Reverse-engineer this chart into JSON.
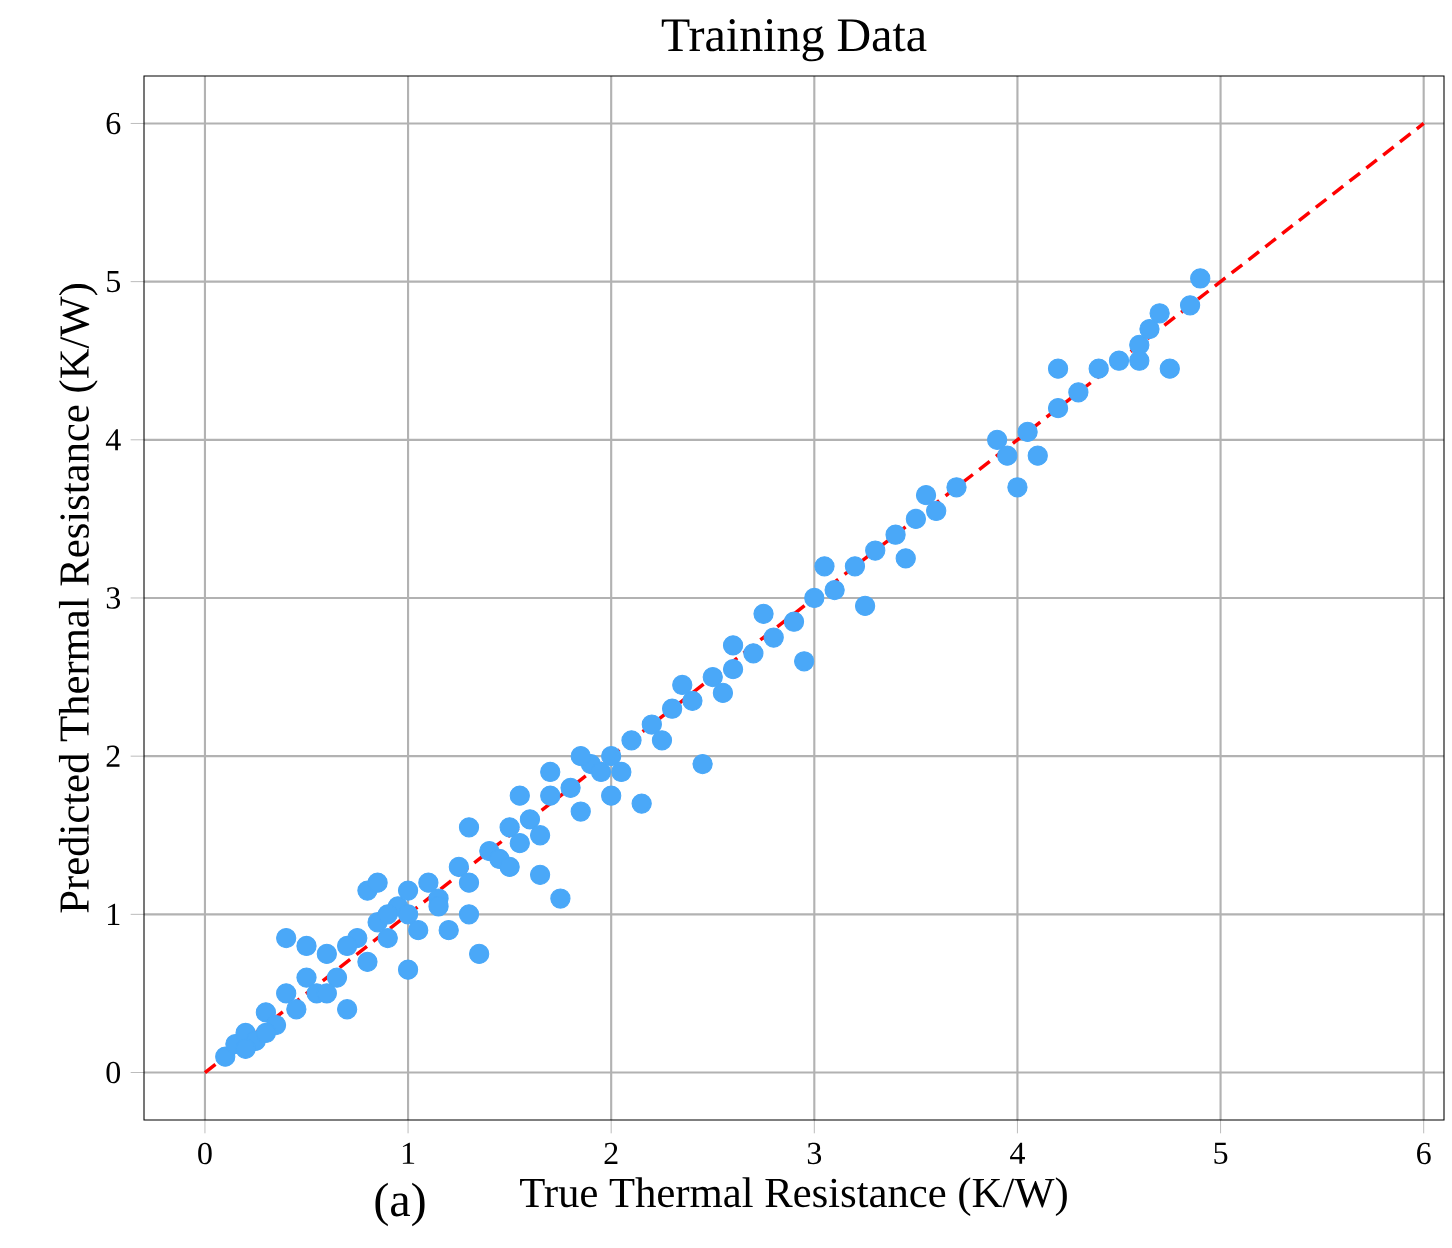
{
  "chart_data": {
    "type": "scatter",
    "title": "Training Data",
    "xlabel": "True Thermal Resistance (K/W)",
    "ylabel": "Predicted Thermal Resistance (K/W)",
    "annotations": [
      "(a)"
    ],
    "xlim": [
      -0.3,
      6.1
    ],
    "ylim": [
      -0.3,
      6.3
    ],
    "xticks": [
      0,
      1,
      2,
      3,
      4,
      5,
      6
    ],
    "yticks": [
      0,
      1,
      2,
      3,
      4,
      5,
      6
    ],
    "grid": true,
    "marker": "circle",
    "series": [
      {
        "color": "#4aa8f8",
        "x": [
          0.1,
          0.15,
          0.2,
          0.25,
          0.3,
          0.35,
          0.4,
          0.45,
          0.5,
          0.55,
          0.4,
          0.5,
          0.6,
          0.65,
          0.7,
          0.75,
          0.8,
          0.85,
          0.9,
          0.95,
          1.0,
          1.05,
          1.0,
          1.1,
          1.15,
          0.8,
          0.85,
          1.2,
          1.25,
          1.3,
          1.35,
          1.4,
          1.45,
          1.5,
          1.55,
          1.6,
          1.3,
          1.65,
          1.7,
          1.75,
          1.8,
          1.85,
          1.9,
          1.95,
          2.0,
          2.05,
          1.7,
          1.85,
          2.1,
          2.2,
          2.15,
          2.3,
          2.4,
          2.5,
          2.6,
          2.45,
          2.0,
          1.65,
          2.7,
          2.8,
          2.9,
          2.75,
          3.0,
          3.1,
          3.05,
          2.95,
          3.2,
          3.3,
          3.4,
          3.5,
          3.6,
          3.25,
          3.45,
          3.7,
          3.9,
          3.95,
          4.0,
          4.05,
          4.1,
          4.2,
          4.3,
          4.2,
          4.4,
          4.5,
          4.6,
          4.65,
          4.75,
          4.7,
          4.85,
          4.9,
          4.6,
          3.55,
          2.25,
          2.35,
          2.55,
          1.55,
          1.15,
          0.3,
          0.2,
          0.6,
          0.7,
          0.9,
          1.0,
          1.3,
          1.5,
          2.6
        ],
        "values": [
          0.1,
          0.18,
          0.25,
          0.2,
          0.38,
          0.3,
          0.5,
          0.4,
          0.6,
          0.5,
          0.85,
          0.8,
          0.75,
          0.6,
          0.4,
          0.85,
          0.7,
          0.95,
          0.85,
          1.05,
          1.0,
          0.9,
          0.65,
          1.2,
          1.1,
          1.15,
          1.2,
          0.9,
          1.3,
          1.2,
          0.75,
          1.4,
          1.35,
          1.55,
          1.45,
          1.6,
          1.55,
          1.5,
          1.75,
          1.1,
          1.8,
          1.65,
          1.95,
          1.9,
          2.0,
          1.9,
          1.9,
          2.0,
          2.1,
          2.2,
          1.7,
          2.3,
          2.35,
          2.5,
          2.55,
          1.95,
          1.75,
          1.25,
          2.65,
          2.75,
          2.85,
          2.9,
          3.0,
          3.05,
          3.2,
          2.6,
          3.2,
          3.3,
          3.4,
          3.5,
          3.55,
          2.95,
          3.25,
          3.7,
          4.0,
          3.9,
          3.7,
          4.05,
          3.9,
          4.2,
          4.3,
          4.45,
          4.45,
          4.5,
          4.6,
          4.7,
          4.45,
          4.8,
          4.85,
          5.02,
          4.5,
          3.65,
          2.1,
          2.45,
          2.4,
          1.75,
          1.05,
          0.25,
          0.15,
          0.5,
          0.8,
          1.0,
          1.15,
          1.0,
          1.3,
          2.7
        ]
      },
      {
        "type": "line",
        "color": "#ff0000",
        "line_style": "dashed",
        "marker": "none",
        "x": [
          0,
          6
        ],
        "values": [
          0,
          6
        ]
      }
    ]
  }
}
